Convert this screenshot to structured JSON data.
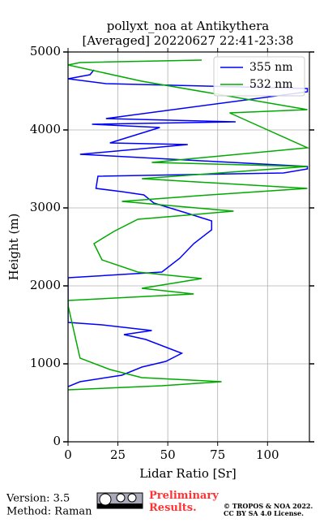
{
  "chart_data": {
    "type": "line",
    "title": "pollyxt_noa at Antikythera",
    "subtitle": "[Averaged] 20220627 22:41-23:38",
    "x_label": "Lidar Ratio [Sr]",
    "y_label": "Height (m)",
    "xlim": [
      0,
      121
    ],
    "ylim": [
      0,
      5000
    ],
    "xticks": [
      0,
      25,
      50,
      75,
      100
    ],
    "yticks": [
      0,
      1000,
      2000,
      3000,
      4000,
      5000
    ],
    "grid": true,
    "legend": "upper right",
    "series": [
      {
        "name": "355 nm",
        "color": "#0000ff",
        "heights": [
          4771,
          4708,
          4656,
          4594,
          4531,
          4490,
          4146,
          4104,
          4073,
          4031,
          3833,
          3812,
          3688,
          3531,
          3500,
          3448,
          3406,
          3250,
          3208,
          3167,
          3063,
          2938,
          2833,
          2719,
          2542,
          2354,
          2177,
          2104,
          1531,
          1500,
          1427,
          1375,
          1313,
          1135,
          1031,
          958,
          854,
          771,
          708
        ],
        "values": [
          13,
          11,
          0,
          19,
          120,
          120,
          19,
          84,
          12,
          46,
          21,
          60,
          6,
          120,
          120,
          108,
          15,
          14,
          27,
          38,
          43,
          59,
          72,
          72,
          63,
          56,
          47,
          0,
          0,
          17,
          42,
          28,
          39,
          57,
          49,
          37,
          27,
          6,
          0
        ]
      },
      {
        "name": "532 nm",
        "color": "#00aa00",
        "heights": [
          4896,
          4865,
          4833,
          4625,
          4260,
          4219,
          3771,
          3583,
          3531,
          3375,
          3250,
          3167,
          3083,
          2958,
          2854,
          2698,
          2542,
          2333,
          2177,
          2094,
          1969,
          1896,
          1813,
          1750,
          1073,
          927,
          823,
          771,
          719,
          667
        ],
        "values": [
          67,
          6,
          0,
          37,
          120,
          81,
          120,
          42,
          120,
          37,
          120,
          71,
          27,
          83,
          35,
          23,
          13,
          17,
          35,
          67,
          37,
          63,
          0,
          0,
          6,
          21,
          37,
          77,
          47,
          0
        ]
      }
    ]
  },
  "footer": {
    "version": "Version: 3.5",
    "method": "Method: Raman",
    "status": "Preliminary Results.",
    "copyright": "© TROPOS & NOA 2022.",
    "license": "CC BY SA 4.0 License."
  }
}
